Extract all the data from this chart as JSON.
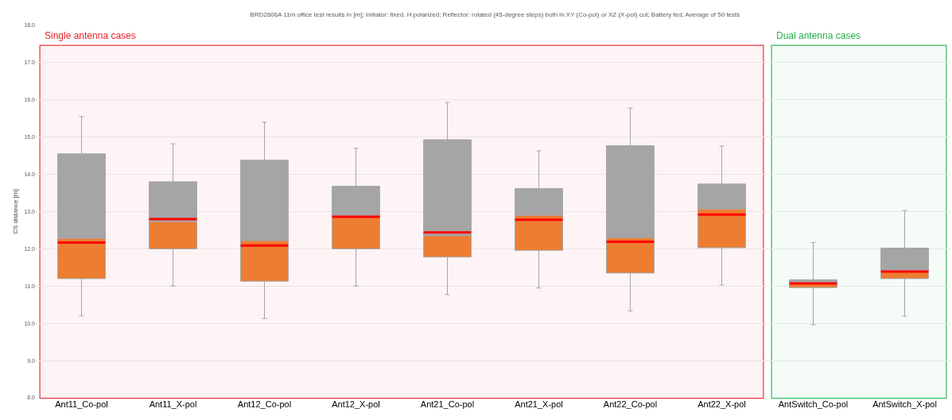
{
  "chart_data": {
    "type": "box",
    "title": "BRD2606A 11m office test results in [m]; Initiator: fixed, H polarized; Reflector: rotated (45-degree steps) both in XY (Co-pol) or XZ (X-pol) cut; Battery fed; Average of 50 tests",
    "ylabel": "CS distance [m]",
    "categories": [
      "Ant11_Co-pol",
      "Ant11_X-pol",
      "Ant12_Co-pol",
      "Ant12_X-pol",
      "Ant21_Co-pol",
      "Ant21_X-pol",
      "Ant22_Co-pol",
      "Ant22_X-pol",
      "AntSwitch_Co-pol",
      "AntSwitch_X-pol"
    ],
    "series": [
      {
        "color": "#ed7d31",
        "boxes": [
          {
            "low": 10.2,
            "q1": 11.2,
            "median": 12.28,
            "q3": 14.55,
            "high": 15.55,
            "mean": 12.17
          },
          {
            "low": 11.0,
            "q1": 12.0,
            "median": 12.73,
            "q3": 13.8,
            "high": 14.82,
            "mean": 12.8
          },
          {
            "low": 10.13,
            "q1": 11.13,
            "median": 12.22,
            "q3": 14.38,
            "high": 15.4,
            "mean": 12.09
          },
          {
            "low": 11.0,
            "q1": 12.0,
            "median": 12.9,
            "q3": 13.68,
            "high": 14.7,
            "mean": 12.86
          },
          {
            "low": 10.77,
            "q1": 11.78,
            "median": 12.35,
            "q3": 14.93,
            "high": 15.93,
            "mean": 12.44
          },
          {
            "low": 10.95,
            "q1": 11.96,
            "median": 12.9,
            "q3": 13.62,
            "high": 14.63,
            "mean": 12.78
          },
          {
            "low": 10.33,
            "q1": 11.35,
            "median": 12.3,
            "q3": 14.77,
            "high": 15.78,
            "mean": 12.19
          },
          {
            "low": 11.03,
            "q1": 12.03,
            "median": 13.07,
            "q3": 13.74,
            "high": 14.76,
            "mean": 12.92
          },
          {
            "low": 9.96,
            "q1": 10.96,
            "median": 11.1,
            "q3": 11.17,
            "high": 12.17,
            "mean": 11.07
          },
          {
            "low": 10.19,
            "q1": 11.2,
            "median": 11.38,
            "q3": 12.02,
            "high": 13.03,
            "mean": 11.39
          }
        ]
      }
    ],
    "ylim": [
      8,
      18
    ],
    "yticks": [
      {
        "value": 8,
        "label": "8.0"
      },
      {
        "value": 9,
        "label": "9.0"
      },
      {
        "value": 10,
        "label": "10.0"
      },
      {
        "value": 11,
        "label": "11.0"
      },
      {
        "value": 12,
        "label": "12.0"
      },
      {
        "value": 13,
        "label": "13.0"
      },
      {
        "value": 14,
        "label": "14.0"
      },
      {
        "value": 15,
        "label": "15.0"
      },
      {
        "value": 16,
        "label": "16.0"
      },
      {
        "value": 17,
        "label": "17.0"
      },
      {
        "value": 18,
        "label": "18.0"
      }
    ],
    "grid": "y",
    "bands": [
      {
        "axis": "x",
        "from": "Ant11_Co-pol",
        "to": "Ant22_X-pol",
        "label": "Single antenna cases",
        "color": "#e8212b"
      },
      {
        "axis": "x",
        "from": "AntSwitch_Co-pol",
        "to": "AntSwitch_X-pol",
        "label": "Dual antenna cases",
        "color": "#22b14c"
      }
    ]
  }
}
